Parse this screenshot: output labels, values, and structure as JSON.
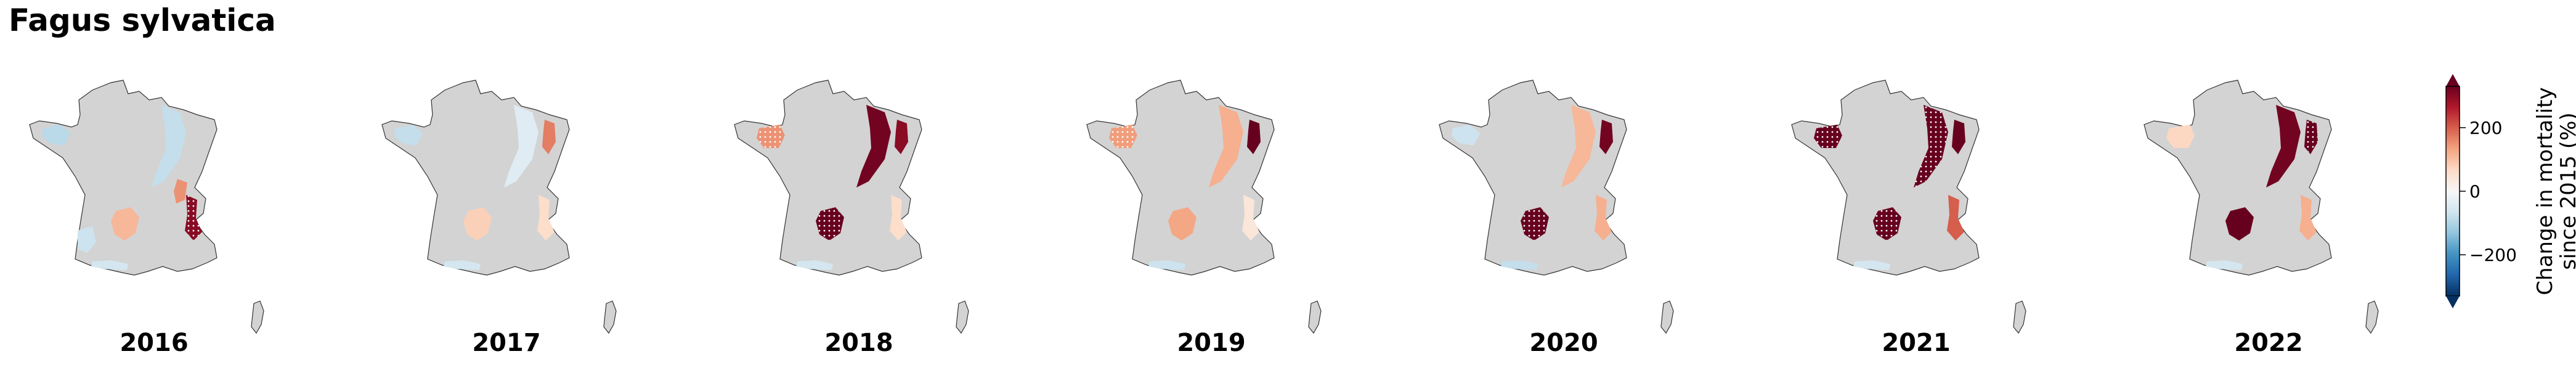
{
  "title": "Fagus sylvatica",
  "panels": [
    {
      "year": "2016",
      "regions": [
        {
          "id": "brittany",
          "change": -90
        },
        {
          "id": "northeast",
          "change": -80
        },
        {
          "id": "alps",
          "change": 300,
          "stippled": true
        },
        {
          "id": "massif_central",
          "change": 110
        },
        {
          "id": "aquitaine",
          "change": -70
        },
        {
          "id": "jura",
          "change": 150
        },
        {
          "id": "pyrenees",
          "change": -60
        }
      ]
    },
    {
      "year": "2017",
      "regions": [
        {
          "id": "brittany",
          "change": -80
        },
        {
          "id": "northeast",
          "change": -40
        },
        {
          "id": "vosges",
          "change": 170
        },
        {
          "id": "massif_central",
          "change": 80
        },
        {
          "id": "alps",
          "change": 60
        },
        {
          "id": "pyrenees",
          "change": -60
        }
      ]
    },
    {
      "year": "2018",
      "regions": [
        {
          "id": "normandy",
          "change": 150,
          "stippled": true
        },
        {
          "id": "northeast",
          "change": 320
        },
        {
          "id": "vosges",
          "change": 300
        },
        {
          "id": "massif_central",
          "change": 330,
          "stippled": true
        },
        {
          "id": "alps",
          "change": 60
        },
        {
          "id": "pyrenees",
          "change": -60
        }
      ]
    },
    {
      "year": "2019",
      "regions": [
        {
          "id": "normandy",
          "change": 140,
          "stippled": true
        },
        {
          "id": "northeast",
          "change": 120
        },
        {
          "id": "vosges",
          "change": 330
        },
        {
          "id": "massif_central",
          "change": 130
        },
        {
          "id": "alps",
          "change": 40
        },
        {
          "id": "pyrenees",
          "change": -70
        }
      ]
    },
    {
      "year": "2020",
      "regions": [
        {
          "id": "brittany",
          "change": -70
        },
        {
          "id": "northeast",
          "change": 110
        },
        {
          "id": "vosges",
          "change": 320
        },
        {
          "id": "massif_central",
          "change": 340,
          "stippled": true
        },
        {
          "id": "alps",
          "change": 120
        },
        {
          "id": "pyrenees",
          "change": -80
        }
      ]
    },
    {
      "year": "2021",
      "regions": [
        {
          "id": "normandy",
          "change": 330,
          "stippled": true
        },
        {
          "id": "northeast",
          "change": 340,
          "stippled": true
        },
        {
          "id": "vosges",
          "change": 330
        },
        {
          "id": "massif_central",
          "change": 340,
          "stippled": true
        },
        {
          "id": "alps",
          "change": 200
        },
        {
          "id": "pyrenees",
          "change": -60
        }
      ]
    },
    {
      "year": "2022",
      "regions": [
        {
          "id": "normandy",
          "change": 70
        },
        {
          "id": "northeast",
          "change": 320
        },
        {
          "id": "vosges",
          "change": 340,
          "stippled": true
        },
        {
          "id": "massif_central",
          "change": 330
        },
        {
          "id": "alps",
          "change": 120
        },
        {
          "id": "pyrenees",
          "change": -60
        }
      ]
    }
  ],
  "colorbar": {
    "label_line1": "Change in mortality",
    "label_line2": "since 2015 (%)",
    "min": -330,
    "max": 330,
    "ticks": [
      {
        "value": 200,
        "label": "200"
      },
      {
        "value": 0,
        "label": "0"
      },
      {
        "value": -200,
        "label": "−200"
      }
    ],
    "colors": [
      "#053061",
      "#2166ac",
      "#4393c3",
      "#92c5de",
      "#d1e5f0",
      "#f7f7f7",
      "#fddbc7",
      "#f4a582",
      "#d6604d",
      "#b2182b",
      "#67001f"
    ]
  },
  "land_color": "#d3d3d3"
}
